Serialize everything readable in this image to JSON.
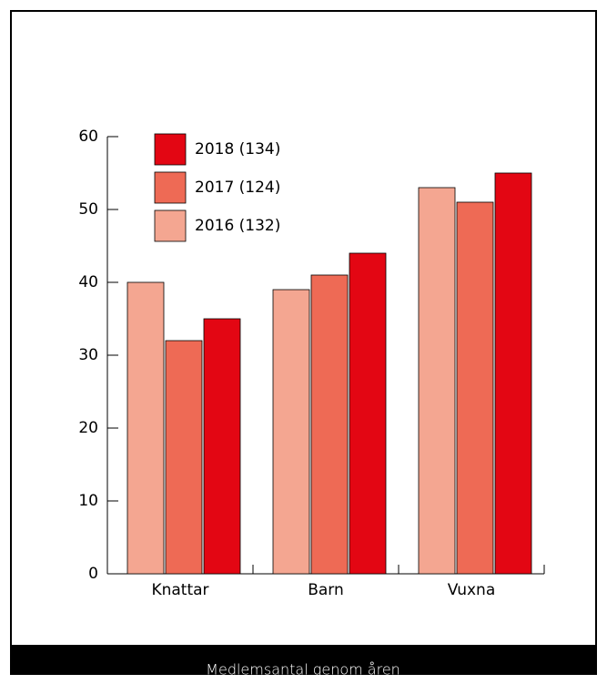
{
  "chart_data": {
    "type": "bar",
    "title": "Medlemsantal genom åren",
    "categories": [
      "Knattar",
      "Barn",
      "Vuxna"
    ],
    "series": [
      {
        "name": "2016 (132)",
        "color": "#f4a691",
        "values": [
          40,
          39,
          53
        ]
      },
      {
        "name": "2017 (124)",
        "color": "#ee6a55",
        "values": [
          32,
          41,
          51
        ]
      },
      {
        "name": "2018 (134)",
        "color": "#e30613",
        "values": [
          35,
          44,
          55
        ]
      }
    ],
    "ylim": [
      0,
      60
    ],
    "yticks": [
      0,
      10,
      20,
      30,
      40,
      50,
      60
    ],
    "grid": false,
    "legend": "upper left"
  }
}
